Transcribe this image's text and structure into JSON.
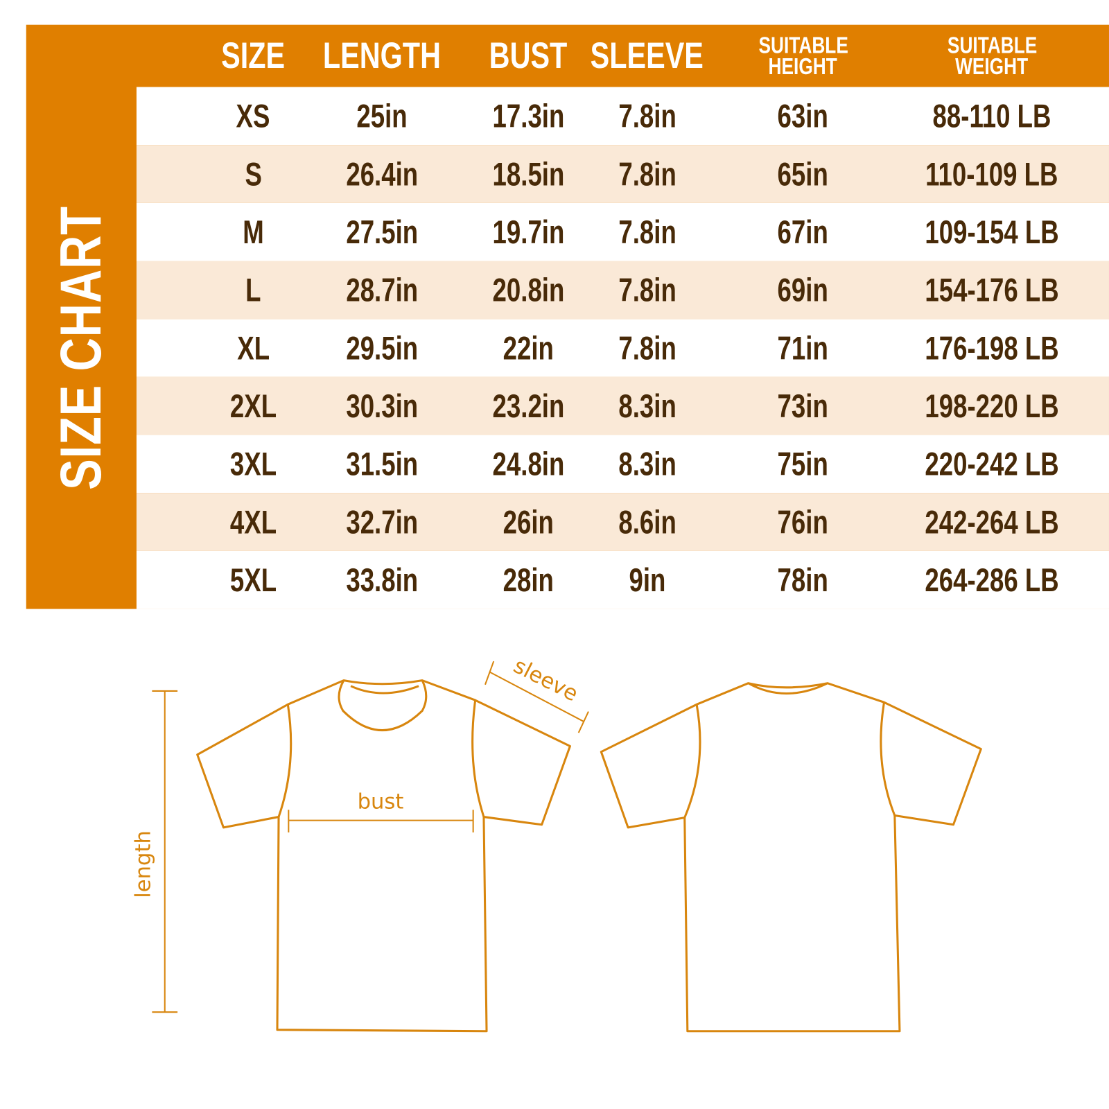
{
  "title": "SIZE CHART",
  "colors": {
    "accent": "#e07f00",
    "row_alt": "#fae9d7",
    "text": "#482a08",
    "line": "#d8860e"
  },
  "columns": [
    "SIZE",
    "LENGTH",
    "BUST",
    "SLEEVE",
    "SUITABLE HEIGHT",
    "SUITABLE WEIGHT"
  ],
  "rows": [
    [
      "XS",
      "25in",
      "17.3in",
      "7.8in",
      "63in",
      "88-110 LB"
    ],
    [
      "S",
      "26.4in",
      "18.5in",
      "7.8in",
      "65in",
      "110-109 LB"
    ],
    [
      "M",
      "27.5in",
      "19.7in",
      "7.8in",
      "67in",
      "109-154 LB"
    ],
    [
      "L",
      "28.7in",
      "20.8in",
      "7.8in",
      "69in",
      "154-176 LB"
    ],
    [
      "XL",
      "29.5in",
      "22in",
      "7.8in",
      "71in",
      "176-198 LB"
    ],
    [
      "2XL",
      "30.3in",
      "23.2in",
      "8.3in",
      "73in",
      "198-220 LB"
    ],
    [
      "3XL",
      "31.5in",
      "24.8in",
      "8.3in",
      "75in",
      "220-242 LB"
    ],
    [
      "4XL",
      "32.7in",
      "26in",
      "8.6in",
      "76in",
      "242-264 LB"
    ],
    [
      "5XL",
      "33.8in",
      "28in",
      "9in",
      "78in",
      "264-286 LB"
    ]
  ],
  "diagram": {
    "sleeve_label": "sleeve",
    "bust_label": "bust",
    "length_label": "length"
  }
}
